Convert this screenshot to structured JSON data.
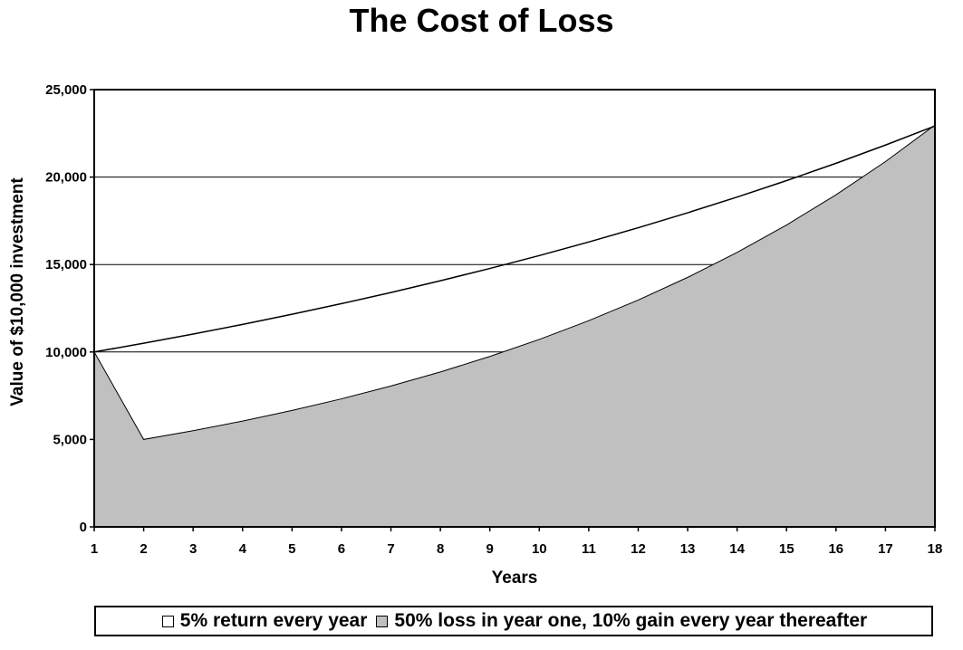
{
  "chart_data": {
    "type": "area",
    "title": "The Cost of Loss",
    "xlabel": "Years",
    "ylabel": "Value of $10,000 investment",
    "x": [
      1,
      2,
      3,
      4,
      5,
      6,
      7,
      8,
      9,
      10,
      11,
      12,
      13,
      14,
      15,
      16,
      17,
      18
    ],
    "xlim": [
      1,
      18
    ],
    "ylim": [
      0,
      25000
    ],
    "y_ticks": [
      0,
      5000,
      10000,
      15000,
      20000,
      25000
    ],
    "y_tick_labels": [
      "0",
      "5,000",
      "10,000",
      "15,000",
      "20,000",
      "25,000"
    ],
    "grid": "horizontal",
    "legend_position": "bottom",
    "series": [
      {
        "name": "5% return every year",
        "style": "line",
        "color": "#ffffff",
        "values": [
          10000,
          10500,
          11025,
          11576,
          12155,
          12763,
          13401,
          14071,
          14775,
          15513,
          16289,
          17103,
          17959,
          18856,
          19799,
          20789,
          21829,
          22920
        ]
      },
      {
        "name": "50% loss in year one, 10% gain every year thereafter",
        "style": "area",
        "color": "#c0c0c0",
        "values": [
          10000,
          5000,
          5500,
          6050,
          6655,
          7321,
          8053,
          8858,
          9744,
          10718,
          11790,
          12969,
          14266,
          15692,
          17261,
          18987,
          20886,
          22975
        ]
      }
    ]
  }
}
